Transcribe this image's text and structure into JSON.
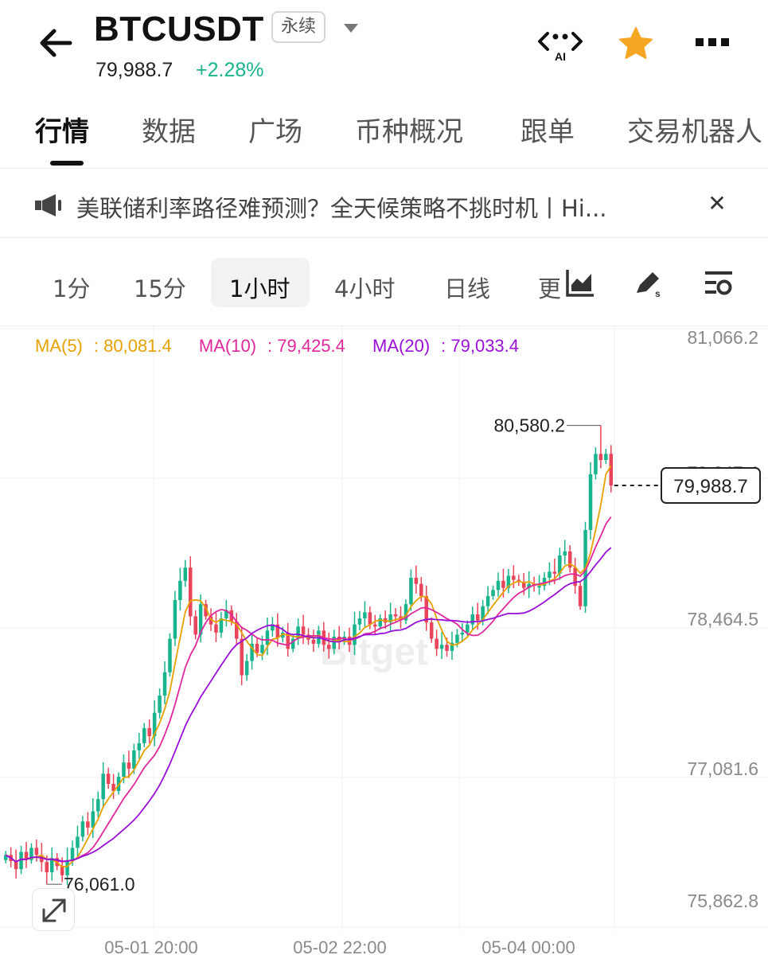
{
  "header": {
    "symbol": "BTCUSDT",
    "contract_type": "永续",
    "last_price": "79,988.7",
    "change_pct": "+2.28%",
    "ai_label": "AI",
    "colors": {
      "up": "#18b48d",
      "down": "#e8445a",
      "star": "#f5a623"
    },
    "icons": [
      "back-arrow-icon",
      "ai-assistant-icon",
      "star-icon",
      "more-icon"
    ]
  },
  "tabs": [
    {
      "label": "行情",
      "active": true
    },
    {
      "label": "数据"
    },
    {
      "label": "广场"
    },
    {
      "label": "币种概况"
    },
    {
      "label": "跟单"
    },
    {
      "label": "交易机器人"
    }
  ],
  "notice": {
    "text": "美联储利率路径难预测？全天候策略不挑时机丨Hi..."
  },
  "intervals": {
    "items": [
      "1分",
      "15分",
      "1小时",
      "4小时",
      "日线",
      "更"
    ],
    "selected": "1小时",
    "tools": [
      "indicator-chart-icon",
      "drawing-tool-icon",
      "chart-settings-icon"
    ]
  },
  "chart_data": {
    "type": "candlestick",
    "title": "",
    "indicators": [
      {
        "name": "MA(5)",
        "value": "80,081.4",
        "color": "#e6a200"
      },
      {
        "name": "MA(10)",
        "value": "79,425.4",
        "color": "#e0289c"
      },
      {
        "name": "MA(20)",
        "value": "79,033.4",
        "color": "#9a10d8"
      }
    ],
    "y_ticks": [
      "81,066.2",
      "79,647.4",
      "78,464.5",
      "77,081.6",
      "75,862.8"
    ],
    "x_ticks": [
      "05-01 20:00",
      "05-02 22:00",
      "05-04 00:00"
    ],
    "ylim": [
      75600,
      81400
    ],
    "high_label": "80,580.2",
    "low_label": "76,061.0",
    "current_price": "79,988.7",
    "grid": true,
    "watermark": "Bitget",
    "closes": [
      76350,
      76290,
      76210,
      76380,
      76300,
      76420,
      76350,
      76280,
      76180,
      76320,
      76240,
      76150,
      76300,
      76420,
      76530,
      76680,
      76620,
      76780,
      76900,
      77150,
      77050,
      76980,
      77120,
      77260,
      77200,
      77380,
      77450,
      77600,
      77520,
      77750,
      77920,
      78150,
      78480,
      78860,
      79050,
      79180,
      78700,
      78520,
      78820,
      78700,
      78620,
      78540,
      78680,
      78760,
      78650,
      78480,
      78120,
      78260,
      78430,
      78340,
      78420,
      78560,
      78620,
      78490,
      78540,
      78380,
      78480,
      78600,
      78520,
      78470,
      78430,
      78560,
      78420,
      78380,
      78500,
      78460,
      78500,
      78420,
      78620,
      78680,
      78740,
      78620,
      78600,
      78680,
      78640,
      78720,
      78700,
      78660,
      78820,
      79080,
      79020,
      78900,
      78640,
      78480,
      78380,
      78420,
      78360,
      78440,
      78520,
      78540,
      78620,
      78720,
      78660,
      78800,
      78900,
      78960,
      79050,
      78980,
      79100,
      79060,
      79040,
      78980,
      79020,
      79000,
      79000,
      79080,
      79140,
      79120,
      79300,
      79340,
      79180,
      79000,
      78800,
      79550,
      80100,
      80300,
      80240,
      80300,
      79989
    ],
    "opens": [
      76300,
      76350,
      76290,
      76210,
      76380,
      76300,
      76420,
      76350,
      76280,
      76180,
      76320,
      76240,
      76150,
      76300,
      76420,
      76530,
      76680,
      76620,
      76780,
      76900,
      77150,
      77050,
      76980,
      77120,
      77260,
      77200,
      77380,
      77450,
      77600,
      77520,
      77750,
      77920,
      78150,
      78480,
      78860,
      79050,
      79180,
      78700,
      78520,
      78820,
      78700,
      78620,
      78540,
      78680,
      78760,
      78650,
      78480,
      78120,
      78260,
      78430,
      78340,
      78420,
      78560,
      78620,
      78490,
      78540,
      78380,
      78480,
      78600,
      78520,
      78470,
      78430,
      78560,
      78420,
      78380,
      78500,
      78460,
      78500,
      78420,
      78620,
      78680,
      78740,
      78620,
      78600,
      78680,
      78640,
      78720,
      78700,
      78660,
      78820,
      79080,
      79020,
      78900,
      78640,
      78480,
      78380,
      78420,
      78360,
      78440,
      78520,
      78540,
      78620,
      78720,
      78660,
      78800,
      78900,
      78960,
      79050,
      78980,
      79100,
      79060,
      79040,
      78980,
      79020,
      79000,
      79000,
      79080,
      79140,
      79120,
      79300,
      79340,
      79180,
      79000,
      78800,
      79550,
      80100,
      80300,
      80240,
      80300
    ],
    "ma5_last": 80081.4,
    "ma10_last": 79425.4,
    "ma20_last": 79033.4
  }
}
